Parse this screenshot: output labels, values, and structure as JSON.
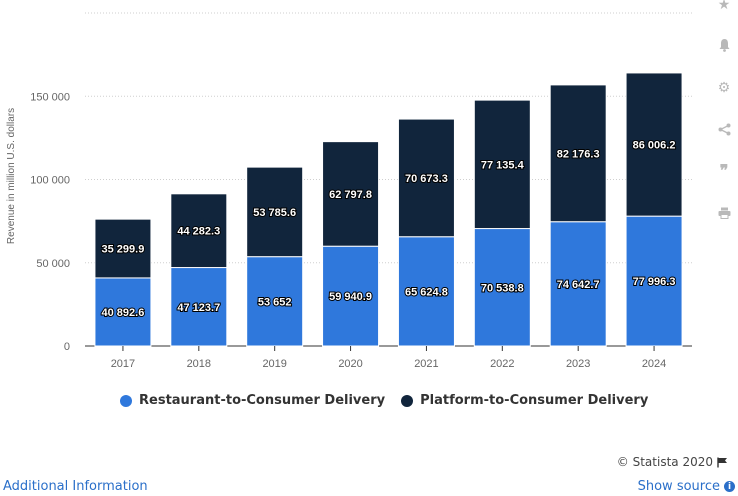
{
  "chart_data": {
    "type": "bar",
    "stacked": true,
    "categories": [
      "2017",
      "2018",
      "2019",
      "2020",
      "2021",
      "2022",
      "2023",
      "2024"
    ],
    "series": [
      {
        "name": "Restaurant-to-Consumer Delivery",
        "color": "#2f78dc",
        "values": [
          40892.6,
          47123.7,
          53652,
          59940.9,
          65624.8,
          70538.8,
          74642.7,
          77996.3
        ],
        "labels": [
          "40 892.6",
          "47 123.7",
          "53 652",
          "59 940.9",
          "65 624.8",
          "70 538.8",
          "74 642.7",
          "77 996.3"
        ]
      },
      {
        "name": "Platform-to-Consumer Delivery",
        "color": "#11253c",
        "values": [
          35299.9,
          44282.3,
          53785.6,
          62797.8,
          70673.3,
          77135.4,
          82176.3,
          86006.2
        ],
        "labels": [
          "35 299.9",
          "44 282.3",
          "53 785.6",
          "62 797.8",
          "70 673.3",
          "77 135.4",
          "82 176.3",
          "86 006.2"
        ]
      }
    ],
    "ylabel": "Revenue in million U.S. dollars",
    "xlabel": "",
    "ylim": [
      0,
      200000
    ],
    "yticks": [
      0,
      50000,
      100000,
      150000
    ],
    "ytick_labels": [
      "0",
      "50 000",
      "100 000",
      "150 000"
    ],
    "grid": true,
    "legend_position": "bottom"
  },
  "legend": {
    "item1": "Restaurant-to-Consumer Delivery",
    "item2": "Platform-to-Consumer Delivery"
  },
  "footer": {
    "copyright": "© Statista 2020",
    "additional_info": "Additional Information",
    "show_source": "Show source"
  },
  "colors": {
    "restaurant": "#2f78dc",
    "platform": "#11253c",
    "link": "#2a6fc9"
  }
}
